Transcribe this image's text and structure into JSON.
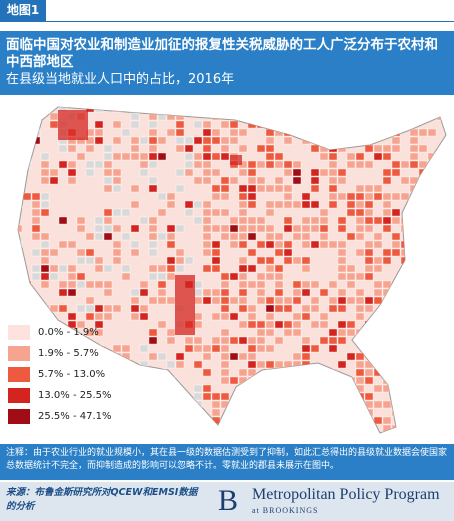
{
  "header": {
    "tag": "地图1"
  },
  "title": "面临中国对农业和制造业加征的报复性关税威胁的工人广泛分布于农村和中西部地区",
  "subtitle": "在县级当地就业人口中的占比，2016年",
  "legend": [
    {
      "label": "0.0% - 1.9%",
      "color": "#fde2dd"
    },
    {
      "label": "1.9% - 5.7%",
      "color": "#f6a48f"
    },
    {
      "label": "5.7% - 13.0%",
      "color": "#ee5a3f"
    },
    {
      "label": "13.0% - 25.5%",
      "color": "#d42420"
    },
    {
      "label": "25.5% - 47.1%",
      "color": "#a10d14"
    }
  ],
  "note": "注释：由于农业行业的就业规模小，其在县一级的数据估测受到了抑制，如此汇总得出的县级就业数据会使国家总数据统计不完全，而抑制造成的影响可以忽略不计。零就业的郡县未展示在图中。",
  "source": "来源：布鲁金斯研究所对QCEW和EMSI数据的分析",
  "logo": {
    "letter": "B",
    "name": "Metropolitan Policy Program",
    "sub": "at BROOKINGS"
  }
}
